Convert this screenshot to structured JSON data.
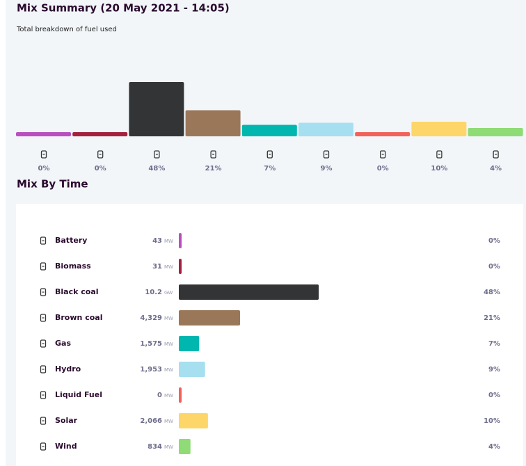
{
  "summary": {
    "title": "Mix Summary (20 May 2021 - 14:05)",
    "subtitle": "Total breakdown of fuel used",
    "percents": [
      0,
      0,
      48,
      21,
      7,
      9,
      0,
      10,
      4
    ],
    "percent_labels": [
      "0%",
      "0%",
      "48%",
      "21%",
      "7%",
      "9%",
      "0%",
      "10%",
      "4%"
    ],
    "colors": [
      "#b94fbf",
      "#a3213f",
      "#333436",
      "#9b775a",
      "#00b7b0",
      "#a6dff0",
      "#f0625a",
      "#fdd66a",
      "#8fdb75"
    ]
  },
  "mix_by_time": {
    "title": "Mix By Time",
    "rows": [
      {
        "name": "Battery",
        "value": 43,
        "unit": "MW",
        "percent": 0,
        "percent_label": "0%"
      },
      {
        "name": "Biomass",
        "value": 31,
        "unit": "MW",
        "percent": 0,
        "percent_label": "0%"
      },
      {
        "name": "Black coal",
        "value": 10.2,
        "unit": "GW",
        "percent": 48,
        "percent_label": "48%"
      },
      {
        "name": "Brown coal",
        "value": 4329,
        "value_label": "4,329",
        "unit": "MW",
        "percent": 21,
        "percent_label": "21%"
      },
      {
        "name": "Gas",
        "value": 1575,
        "value_label": "1,575",
        "unit": "MW",
        "percent": 7,
        "percent_label": "7%"
      },
      {
        "name": "Hydro",
        "value": 1953,
        "value_label": "1,953",
        "unit": "MW",
        "percent": 9,
        "percent_label": "9%"
      },
      {
        "name": "Liquid Fuel",
        "value": 0,
        "unit": "MW",
        "percent": 0,
        "percent_label": "0%"
      },
      {
        "name": "Solar",
        "value": 2066,
        "value_label": "2,066",
        "unit": "MW",
        "percent": 10,
        "percent_label": "10%"
      },
      {
        "name": "Wind",
        "value": 834,
        "unit": "MW",
        "percent": 4,
        "percent_label": "4%"
      }
    ]
  }
}
